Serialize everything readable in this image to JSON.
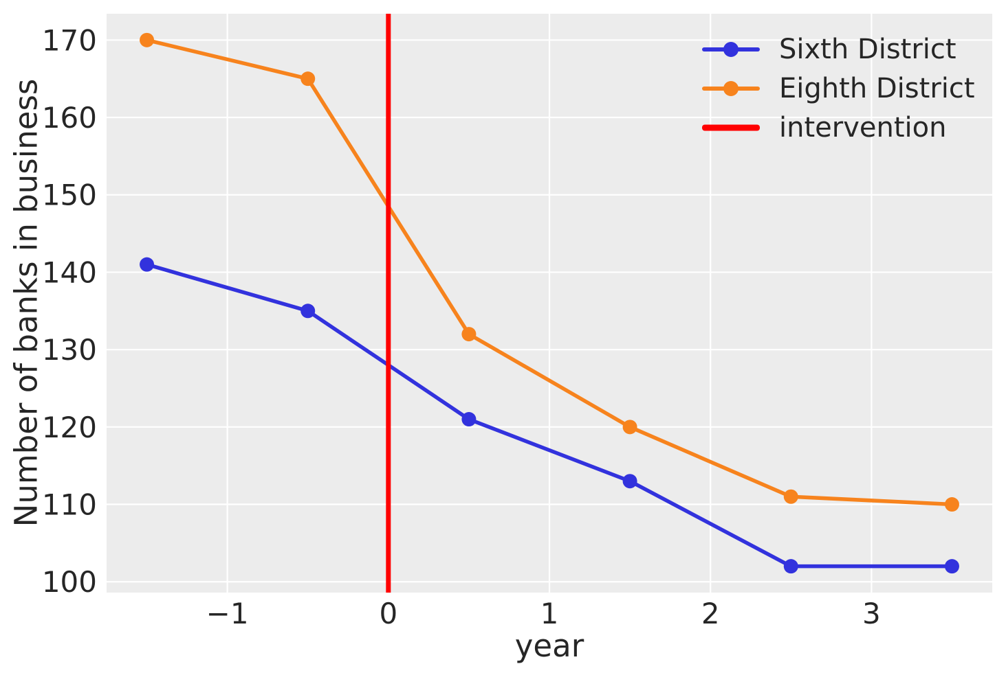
{
  "figure": {
    "bg_color": "#ffffff",
    "plot_bg_color": "#ececec",
    "grid_color": "#ffffff",
    "text_color": "#262626"
  },
  "chart_data": {
    "type": "line",
    "xlabel": "year",
    "ylabel": "Number of banks in business",
    "x": [
      -1.5,
      -0.5,
      0.5,
      1.5,
      2.5,
      3.5
    ],
    "series": [
      {
        "name": "Sixth District",
        "color": "#3232dd",
        "values": [
          141,
          135,
          121,
          113,
          102,
          102
        ]
      },
      {
        "name": "Eighth District",
        "color": "#f7831d",
        "values": [
          170,
          165,
          132,
          120,
          111,
          110
        ]
      }
    ],
    "intervention": {
      "label": "intervention",
      "x": 0,
      "color": "#ff0000"
    },
    "xlim": [
      -1.75,
      3.75
    ],
    "ylim": [
      98.6,
      173.4
    ],
    "xticks": {
      "values": [
        -1,
        0,
        1,
        2,
        3
      ],
      "labels": [
        "−1",
        "0",
        "1",
        "2",
        "3"
      ]
    },
    "yticks": {
      "values": [
        100,
        110,
        120,
        130,
        140,
        150,
        160,
        170
      ],
      "labels": [
        "100",
        "110",
        "120",
        "130",
        "140",
        "150",
        "160",
        "170"
      ]
    },
    "grid": true,
    "legend_position": "upper right"
  }
}
